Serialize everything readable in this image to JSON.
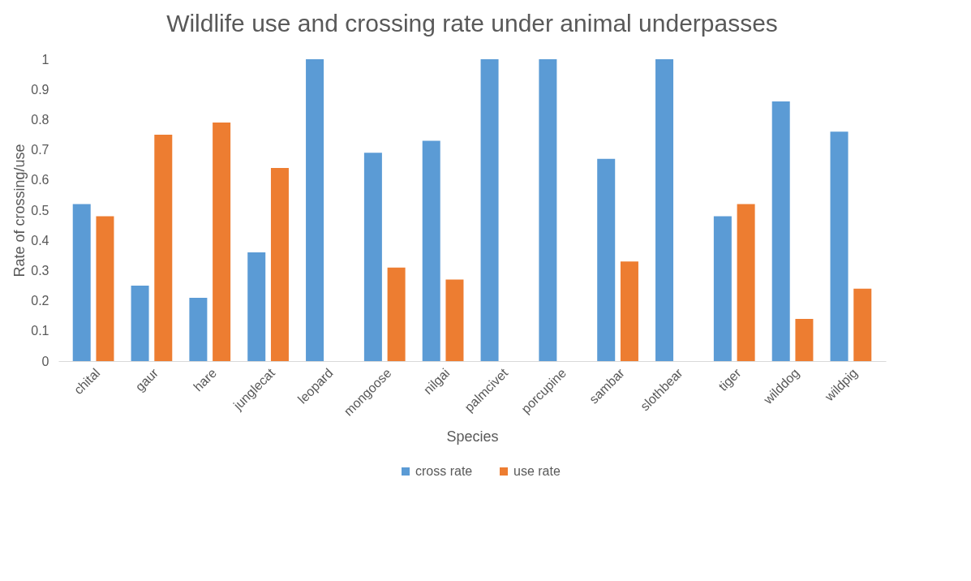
{
  "chart_data": {
    "type": "bar",
    "title": "Wildlife use and crossing rate under animal underpasses",
    "xlabel": "Species",
    "ylabel": "Rate of crossing/use",
    "categories": [
      "chital",
      "gaur",
      "hare",
      "junglecat",
      "leopard",
      "mongoose",
      "nilgai",
      "palmcivet",
      "porcupine",
      "sambar",
      "slothbear",
      "tiger",
      "wilddog",
      "wildpig"
    ],
    "series": [
      {
        "name": "cross rate",
        "color": "#5b9bd5",
        "values": [
          0.52,
          0.25,
          0.21,
          0.36,
          1,
          0.69,
          0.73,
          1,
          1,
          0.67,
          1,
          0.48,
          0.86,
          0.76
        ]
      },
      {
        "name": "use rate",
        "color": "#ed7d31",
        "values": [
          0.48,
          0.75,
          0.79,
          0.64,
          0,
          0.31,
          0.27,
          0,
          0,
          0.33,
          0,
          0.52,
          0.14,
          0.24
        ]
      }
    ],
    "ylim": [
      0,
      1
    ],
    "yticks": [
      0,
      0.1,
      0.2,
      0.3,
      0.4,
      0.5,
      0.6,
      0.7,
      0.8,
      0.9,
      1
    ],
    "grid": false,
    "legend": "bottom"
  }
}
